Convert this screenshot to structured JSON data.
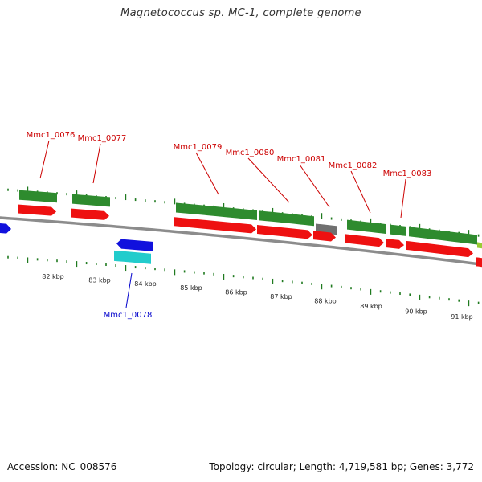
{
  "header": {
    "title": "Magnetococcus sp. MC-1, complete genome"
  },
  "footer": {
    "accession": "Accession: NC_008576",
    "summary": "Topology: circular; Length: 4,719,581 bp; Genes: 3,772"
  },
  "colors": {
    "gene_green": "#2e8b2e",
    "cds_red": "#ee1111",
    "reverse_blue": "#1111dd",
    "reverse_cyan": "#22cccc",
    "grey_feature": "#707070",
    "backbone": "#8c8c8c",
    "tick_green": "#1f7a1f",
    "label_forward": "#cc0000",
    "label_reverse": "#0000cc"
  },
  "scale_labels": [
    "82 kbp",
    "83 kbp",
    "84 kbp",
    "85 kbp",
    "86 kbp",
    "87 kbp",
    "88 kbp",
    "89 kbp",
    "90 kbp",
    "91 kbp"
  ],
  "gene_labels": [
    {
      "text": "Mmc1_0076",
      "strand": "forward"
    },
    {
      "text": "Mmc1_0077",
      "strand": "forward"
    },
    {
      "text": "Mmc1_0078",
      "strand": "reverse"
    },
    {
      "text": "Mmc1_0079",
      "strand": "forward"
    },
    {
      "text": "Mmc1_0080",
      "strand": "forward"
    },
    {
      "text": "Mmc1_0081",
      "strand": "forward"
    },
    {
      "text": "Mmc1_0082",
      "strand": "forward"
    },
    {
      "text": "Mmc1_0083",
      "strand": "forward"
    }
  ]
}
